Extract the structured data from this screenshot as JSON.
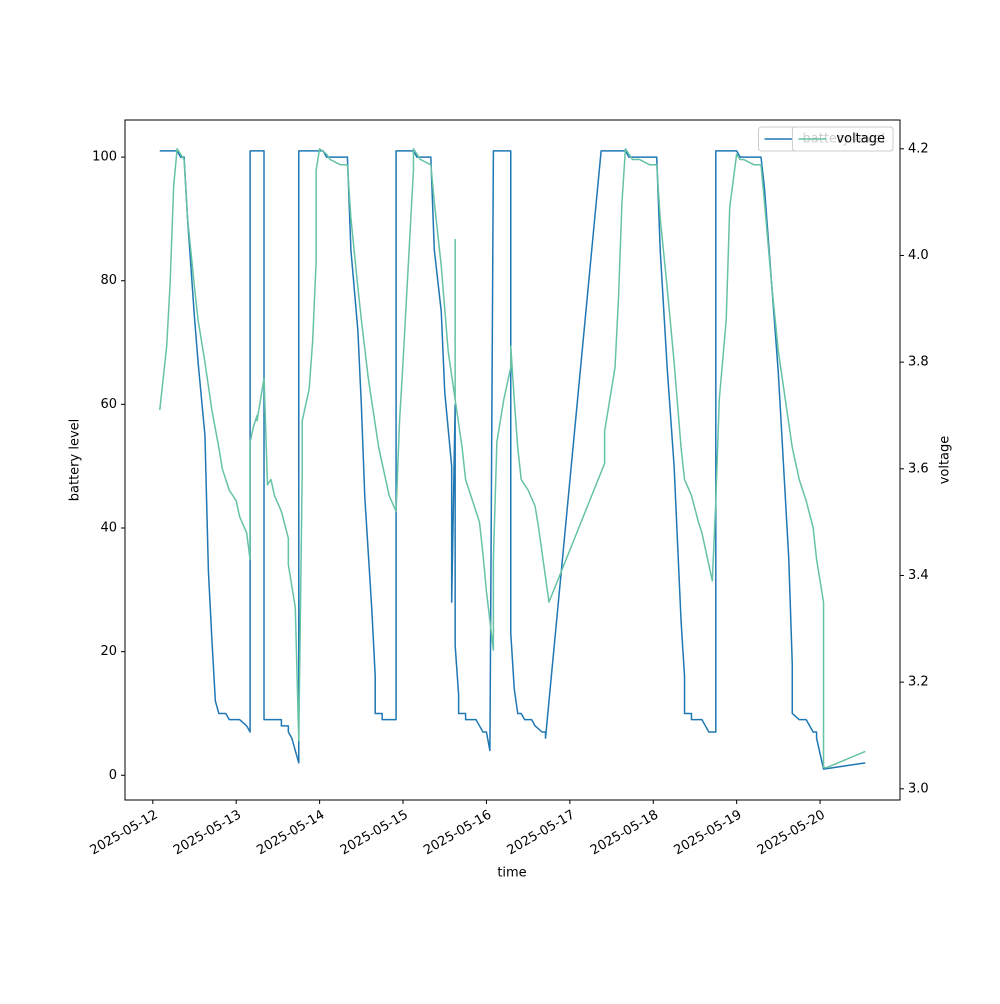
{
  "chart_data": {
    "type": "line",
    "xlabel": "time",
    "ylabel": "battery level",
    "y2label": "voltage",
    "xlim": [
      "2025-05-11 16:00",
      "2025-05-20 23:00"
    ],
    "xticks": [
      "2025-05-12",
      "2025-05-13",
      "2025-05-14",
      "2025-05-15",
      "2025-05-16",
      "2025-05-17",
      "2025-05-18",
      "2025-05-19",
      "2025-05-20"
    ],
    "ylim": [
      -4,
      106
    ],
    "yticks": [
      0,
      20,
      40,
      60,
      80,
      100
    ],
    "y2lim": [
      2.979,
      4.254
    ],
    "y2ticks": [
      {
        "value": 3,
        "label": "3.0"
      },
      3.2,
      3.4,
      3.6,
      3.8,
      {
        "value": 4,
        "label": "4.0"
      },
      4.2
    ],
    "legend": "upper right",
    "series": [
      {
        "name": "battery level",
        "color": "#1f77b4",
        "x": [
          "2025-05-12 02:00",
          "2025-05-12 07:00",
          "2025-05-12 08:00",
          "2025-05-12 09:00",
          "2025-05-12 10:00",
          "2025-05-12 12:00",
          "2025-05-12 13:00",
          "2025-05-12 15:00",
          "2025-05-12 16:00",
          "2025-05-12 17:00",
          "2025-05-12 18:00",
          "2025-05-12 19:00",
          "2025-05-12 21:00",
          "2025-05-12 22:00",
          "2025-05-13 01:00",
          "2025-05-13 03:00",
          "2025-05-13 04:00",
          "2025-05-13 04:00",
          "2025-05-13 08:00",
          "2025-05-13 08:00",
          "2025-05-13 13:00",
          "2025-05-13 13:00",
          "2025-05-13 15:00",
          "2025-05-13 15:00",
          "2025-05-13 16:00",
          "2025-05-13 17:00",
          "2025-05-13 18:00",
          "2025-05-13 18:00",
          "2025-05-14 01:00",
          "2025-05-14 02:00",
          "2025-05-14 08:00",
          "2025-05-14 09:00",
          "2025-05-14 11:00",
          "2025-05-14 12:00",
          "2025-05-14 13:00",
          "2025-05-14 15:00",
          "2025-05-14 16:00",
          "2025-05-14 16:00",
          "2025-05-14 18:00",
          "2025-05-14 18:00",
          "2025-05-14 22:00",
          "2025-05-14 22:00",
          "2025-05-15 03:00",
          "2025-05-15 04:00",
          "2025-05-15 08:00",
          "2025-05-15 09:00",
          "2025-05-15 11:00",
          "2025-05-15 12:00",
          "2025-05-15 14:00",
          "2025-05-15 14:00",
          "2025-05-15 15:00",
          "2025-05-15 15:00",
          "2025-05-15 16:00",
          "2025-05-15 16:00",
          "2025-05-15 18:00",
          "2025-05-15 18:00",
          "2025-05-15 21:00",
          "2025-05-15 22:00",
          "2025-05-15 23:00",
          "2025-05-16 00:00",
          "2025-05-16 01:00",
          "2025-05-16 02:00",
          "2025-05-16 07:00",
          "2025-05-16 07:00",
          "2025-05-16 08:00",
          "2025-05-16 09:00",
          "2025-05-16 10:00",
          "2025-05-16 11:00",
          "2025-05-16 13:00",
          "2025-05-16 14:00",
          "2025-05-16 16:00",
          "2025-05-16 17:00",
          "2025-05-16 17:00",
          "2025-05-16 18:00",
          "2025-05-17 09:00",
          "2025-05-17 16:00",
          "2025-05-17 17:00",
          "2025-05-18 01:00",
          "2025-05-18 02:00",
          "2025-05-18 04:00",
          "2025-05-18 06:00",
          "2025-05-18 08:00",
          "2025-05-18 09:00",
          "2025-05-18 09:00",
          "2025-05-18 11:00",
          "2025-05-18 11:00",
          "2025-05-18 14:00",
          "2025-05-18 15:00",
          "2025-05-18 16:00",
          "2025-05-18 18:00",
          "2025-05-18 18:00",
          "2025-05-19 00:00",
          "2025-05-19 01:00",
          "2025-05-19 07:00",
          "2025-05-19 08:00",
          "2025-05-19 10:00",
          "2025-05-19 12:00",
          "2025-05-19 13:00",
          "2025-05-19 15:00",
          "2025-05-19 16:00",
          "2025-05-19 16:00",
          "2025-05-19 18:00",
          "2025-05-19 20:00",
          "2025-05-19 22:00",
          "2025-05-19 23:00",
          "2025-05-19 23:00",
          "2025-05-20 01:00",
          "2025-05-20 13:00"
        ],
        "values": [
          101,
          101,
          100,
          100,
          90,
          74,
          67,
          55,
          33,
          22,
          12,
          10,
          10,
          9,
          9,
          8,
          7,
          101,
          101,
          9,
          9,
          8,
          8,
          7,
          6,
          4,
          2,
          101,
          101,
          100,
          100,
          85,
          72,
          60,
          45,
          27,
          16,
          10,
          10,
          9,
          9,
          101,
          101,
          100,
          100,
          85,
          75,
          62,
          50,
          28,
          60,
          21,
          13,
          10,
          10,
          9,
          9,
          8,
          7,
          7,
          4,
          101,
          101,
          23,
          14,
          10,
          10,
          9,
          9,
          8,
          7,
          7,
          6,
          12,
          101,
          101,
          100,
          100,
          85,
          66,
          50,
          25,
          16,
          10,
          10,
          9,
          9,
          8,
          7,
          7,
          101,
          101,
          100,
          100,
          95,
          80,
          65,
          55,
          35,
          18,
          10,
          9,
          9,
          7,
          7,
          6,
          1,
          2
        ]
      },
      {
        "name": "voltage",
        "color": "#66c2a5",
        "axis": "y2",
        "x": [
          "2025-05-12 02:00",
          "2025-05-12 03:00",
          "2025-05-12 04:00",
          "2025-05-12 05:00",
          "2025-05-12 06:00",
          "2025-05-12 07:00",
          "2025-05-12 08:00",
          "2025-05-12 09:00",
          "2025-05-12 10:00",
          "2025-05-12 12:00",
          "2025-05-12 13:00",
          "2025-05-12 15:00",
          "2025-05-12 17:00",
          "2025-05-12 19:00",
          "2025-05-12 20:00",
          "2025-05-12 22:00",
          "2025-05-13 00:00",
          "2025-05-13 01:00",
          "2025-05-13 03:00",
          "2025-05-13 04:00",
          "2025-05-13 04:00",
          "2025-05-13 05:00",
          "2025-05-13 06:00",
          "2025-05-13 06:00",
          "2025-05-13 07:00",
          "2025-05-13 08:00",
          "2025-05-13 09:00",
          "2025-05-13 10:00",
          "2025-05-13 11:00",
          "2025-05-13 13:00",
          "2025-05-13 15:00",
          "2025-05-13 15:00",
          "2025-05-13 16:00",
          "2025-05-13 17:00",
          "2025-05-13 18:00",
          "2025-05-13 19:00",
          "2025-05-13 19:00",
          "2025-05-13 21:00",
          "2025-05-13 22:00",
          "2025-05-13 23:00",
          "2025-05-13 23:00",
          "2025-05-14 00:00",
          "2025-05-14 02:00",
          "2025-05-14 03:00",
          "2025-05-14 06:00",
          "2025-05-14 08:00",
          "2025-05-14 09:00",
          "2025-05-14 11:00",
          "2025-05-14 12:00",
          "2025-05-14 14:00",
          "2025-05-14 17:00",
          "2025-05-14 19:00",
          "2025-05-14 20:00",
          "2025-05-14 22:00",
          "2025-05-14 23:00",
          "2025-05-15 00:00",
          "2025-05-15 01:00",
          "2025-05-15 03:00",
          "2025-05-15 03:00",
          "2025-05-15 05:00",
          "2025-05-15 08:00",
          "2025-05-15 09:00",
          "2025-05-15 11:00",
          "2025-05-15 12:00",
          "2025-05-15 13:00",
          "2025-05-15 15:00",
          "2025-05-15 15:00",
          "2025-05-15 15:00",
          "2025-05-15 17:00",
          "2025-05-15 18:00",
          "2025-05-15 20:00",
          "2025-05-15 22:00",
          "2025-05-15 23:00",
          "2025-05-16 00:00",
          "2025-05-16 02:00",
          "2025-05-16 02:00",
          "2025-05-16 03:00",
          "2025-05-16 05:00",
          "2025-05-16 07:00",
          "2025-05-16 07:00",
          "2025-05-16 08:00",
          "2025-05-16 09:00",
          "2025-05-16 10:00",
          "2025-05-16 12:00",
          "2025-05-16 14:00",
          "2025-05-16 15:00",
          "2025-05-16 18:00",
          "2025-05-17 10:00",
          "2025-05-17 10:00",
          "2025-05-17 13:00",
          "2025-05-17 14:00",
          "2025-05-17 15:00",
          "2025-05-17 16:00",
          "2025-05-17 18:00",
          "2025-05-17 20:00",
          "2025-05-17 23:00",
          "2025-05-18 01:00",
          "2025-05-18 02:00",
          "2025-05-18 04:00",
          "2025-05-18 06:00",
          "2025-05-18 08:00",
          "2025-05-18 09:00",
          "2025-05-18 11:00",
          "2025-05-18 13:00",
          "2025-05-18 14:00",
          "2025-05-18 15:00",
          "2025-05-18 17:00",
          "2025-05-18 18:00",
          "2025-05-18 19:00",
          "2025-05-18 21:00",
          "2025-05-18 22:00",
          "2025-05-19 00:00",
          "2025-05-19 01:00",
          "2025-05-19 02:00",
          "2025-05-19 05:00",
          "2025-05-19 07:00",
          "2025-05-19 08:00",
          "2025-05-19 10:00",
          "2025-05-19 12:00",
          "2025-05-19 14:00",
          "2025-05-19 16:00",
          "2025-05-19 18:00",
          "2025-05-19 20:00",
          "2025-05-19 22:00",
          "2025-05-19 23:00",
          "2025-05-20 01:00",
          "2025-05-20 01:00",
          "2025-05-20 02:00",
          "2025-05-20 13:00"
        ],
        "values": [
          3.71,
          3.77,
          3.83,
          3.95,
          4.13,
          4.2,
          4.19,
          4.18,
          4.07,
          3.94,
          3.88,
          3.8,
          3.71,
          3.64,
          3.6,
          3.56,
          3.54,
          3.51,
          3.48,
          3.43,
          3.65,
          3.68,
          3.7,
          3.69,
          3.73,
          3.77,
          3.57,
          3.58,
          3.55,
          3.52,
          3.47,
          3.42,
          3.38,
          3.34,
          3.09,
          3.6,
          3.69,
          3.75,
          3.84,
          3.99,
          4.16,
          4.2,
          4.19,
          4.18,
          4.17,
          4.17,
          4.07,
          3.94,
          3.88,
          3.77,
          3.64,
          3.58,
          3.55,
          3.52,
          3.69,
          3.8,
          3.92,
          4.16,
          4.2,
          4.18,
          4.17,
          4.1,
          3.98,
          3.9,
          3.82,
          3.73,
          4.03,
          3.73,
          3.64,
          3.58,
          3.54,
          3.5,
          3.44,
          3.37,
          3.26,
          3.43,
          3.65,
          3.73,
          3.79,
          3.83,
          3.73,
          3.64,
          3.58,
          3.56,
          3.53,
          3.49,
          3.35,
          3.61,
          3.67,
          3.79,
          3.92,
          4.1,
          4.2,
          4.18,
          4.18,
          4.17,
          4.17,
          4.07,
          3.94,
          3.8,
          3.64,
          3.58,
          3.55,
          3.5,
          3.48,
          3.45,
          3.39,
          3.54,
          3.73,
          3.88,
          4.09,
          4.19,
          4.18,
          4.18,
          4.17,
          4.17,
          4.1,
          3.95,
          3.82,
          3.73,
          3.64,
          3.58,
          3.54,
          3.49,
          3.43,
          3.35,
          3.04,
          3.04,
          3.07
        ]
      }
    ]
  }
}
